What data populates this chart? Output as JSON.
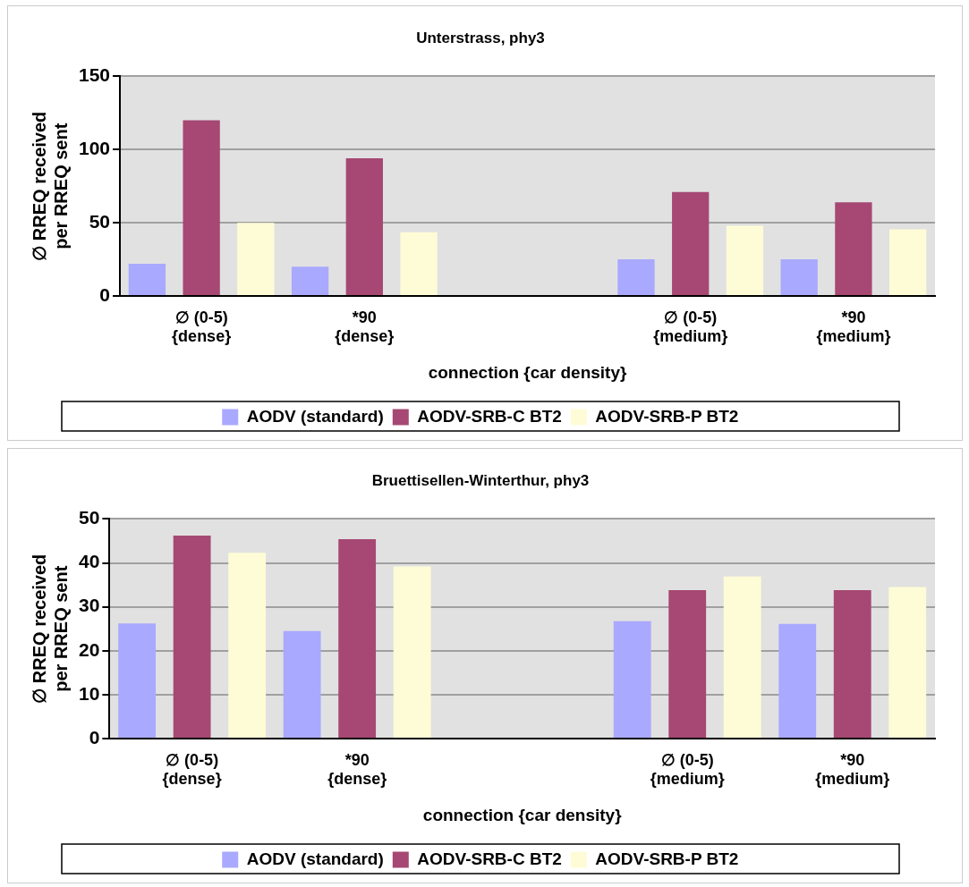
{
  "chart_data": [
    {
      "type": "bar",
      "title": "Unterstrass, phy3",
      "xlabel": "connection {car density}",
      "ylabel": "∅ RREQ received\nper RREQ sent",
      "categories": [
        "∅ (0-5)\n{dense}",
        "*90\n{dense}",
        null,
        "∅ (0-5)\n{medium}",
        "*90\n{medium}"
      ],
      "series": [
        {
          "name": "AODV (standard)",
          "color": "#a9a9ff",
          "values": [
            22,
            20,
            null,
            25,
            25
          ]
        },
        {
          "name": "AODV-SRB-C BT2",
          "color": "#a64873",
          "values": [
            120,
            94,
            null,
            71,
            64
          ]
        },
        {
          "name": "AODV-SRB-P BT2",
          "color": "#fefcd6",
          "values": [
            50,
            43.5,
            null,
            48,
            45.5
          ]
        }
      ],
      "ylim": [
        0,
        150
      ],
      "yticks": [
        0,
        50,
        100,
        150
      ],
      "grid": "y",
      "legend": "bottom"
    },
    {
      "type": "bar",
      "title": "Bruettisellen-Winterthur, phy3",
      "xlabel": "connection {car density}",
      "ylabel": "∅ RREQ received\nper RREQ sent",
      "categories": [
        "∅ (0-5)\n{dense}",
        "*90\n{dense}",
        null,
        "∅ (0-5)\n{medium}",
        "*90\n{medium}"
      ],
      "series": [
        {
          "name": "AODV (standard)",
          "color": "#a9a9ff",
          "values": [
            26.2,
            24.5,
            null,
            26.7,
            26.1
          ]
        },
        {
          "name": "AODV-SRB-C BT2",
          "color": "#a64873",
          "values": [
            46.2,
            45.4,
            null,
            33.8,
            33.8
          ]
        },
        {
          "name": "AODV-SRB-P BT2",
          "color": "#fefcd6",
          "values": [
            42.3,
            39.2,
            null,
            36.9,
            34.5
          ]
        }
      ],
      "ylim": [
        0,
        50
      ],
      "yticks": [
        0,
        10,
        20,
        30,
        40,
        50
      ],
      "grid": "y",
      "legend": "bottom"
    }
  ]
}
